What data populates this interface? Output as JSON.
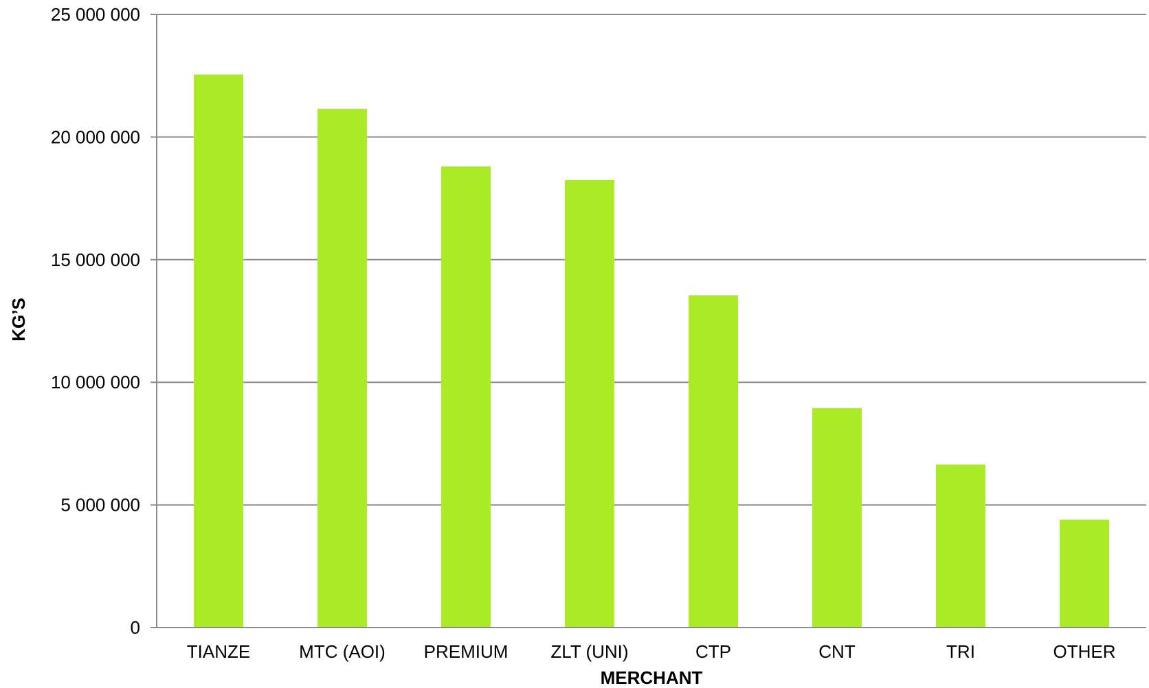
{
  "chart_data": {
    "type": "bar",
    "title": "",
    "xlabel": "MERCHANT",
    "ylabel": "KG’S",
    "categories": [
      "TIANZE",
      "MTC (AOI)",
      "PREMIUM",
      "ZLT (UNI)",
      "CTP",
      "CNT",
      "TRI",
      "OTHER"
    ],
    "values": [
      22550000,
      21150000,
      18800000,
      18250000,
      13550000,
      8950000,
      6650000,
      4400000
    ],
    "ylim": [
      0,
      25000000
    ],
    "yticks": [
      0,
      5000000,
      10000000,
      15000000,
      20000000,
      25000000
    ],
    "ytick_labels": [
      "0",
      "5 000 000",
      "10 000 000",
      "15 000 000",
      "20 000 000",
      "25 000 000"
    ],
    "grid": true,
    "legend": "none",
    "colors": {
      "bar": "#aaea26",
      "grid": "#8c8c8c"
    }
  }
}
